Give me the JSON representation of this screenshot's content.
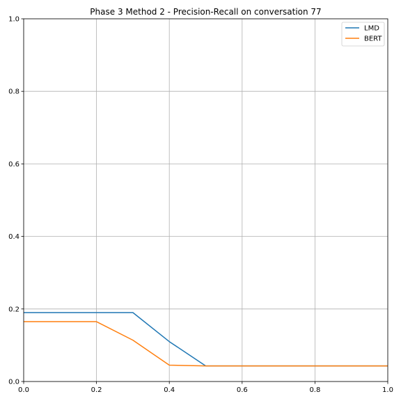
{
  "chart_data": {
    "type": "line",
    "title": "Phase 3 Method 2 - Precision-Recall on conversation 77",
    "xlabel": "",
    "ylabel": "",
    "xlim": [
      0,
      1
    ],
    "ylim": [
      0,
      1
    ],
    "xticks": [
      "0.0",
      "0.2",
      "0.4",
      "0.6",
      "0.8",
      "1.0"
    ],
    "yticks": [
      "0.0",
      "0.2",
      "0.4",
      "0.6",
      "0.8",
      "1.0"
    ],
    "grid": true,
    "legend_position": "top-right",
    "series": [
      {
        "name": "LMD",
        "color": "#1f77b4",
        "x": [
          0.0,
          0.1,
          0.2,
          0.3,
          0.4,
          0.5,
          0.6,
          0.7,
          0.8,
          0.9,
          1.0
        ],
        "y": [
          0.19,
          0.19,
          0.19,
          0.19,
          0.11,
          0.043,
          0.043,
          0.043,
          0.043,
          0.043,
          0.043
        ]
      },
      {
        "name": "BERT",
        "color": "#ff7f0e",
        "x": [
          0.0,
          0.1,
          0.2,
          0.3,
          0.4,
          0.5,
          0.6,
          0.7,
          0.8,
          0.9,
          1.0
        ],
        "y": [
          0.165,
          0.165,
          0.165,
          0.114,
          0.045,
          0.043,
          0.043,
          0.043,
          0.043,
          0.043,
          0.043
        ]
      }
    ]
  }
}
